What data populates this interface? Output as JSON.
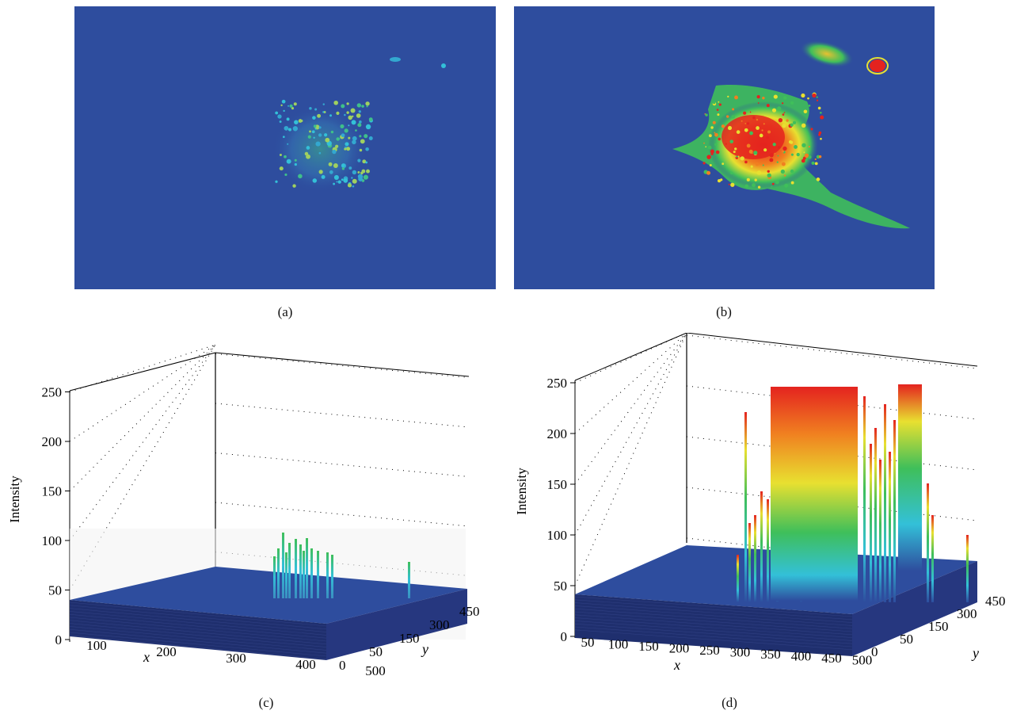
{
  "panels": {
    "a": {
      "label": "(a)"
    },
    "b": {
      "label": "(b)"
    },
    "c": {
      "label": "(c)"
    },
    "d": {
      "label": "(d)"
    }
  },
  "colors": {
    "background_blue": "#2e4d9e",
    "cyan": "#33c0d8",
    "green": "#3fbf5a",
    "yellow": "#e8e030",
    "orange": "#f08020",
    "red": "#e4231f",
    "base_dark": "#1f2f6e"
  },
  "chart_data": [
    {
      "type": "surface",
      "panel": "(c)",
      "zlabel": "Intensity",
      "xlabel": "x",
      "ylabel": "y",
      "z_ticks": [
        "0",
        "50",
        "100",
        "150",
        "200",
        "250"
      ],
      "x_ticks": [
        "100",
        "200",
        "300",
        "400",
        "500"
      ],
      "y_ticks": [
        "0",
        "50",
        "150",
        "300",
        "450"
      ],
      "zlim": [
        0,
        250
      ],
      "baseline_intensity": 40,
      "peak_intensity": 110,
      "grid": true
    },
    {
      "type": "surface",
      "panel": "(d)",
      "zlabel": "Intensity",
      "xlabel": "x",
      "ylabel": "y",
      "z_ticks": [
        "0",
        "50",
        "100",
        "150",
        "200",
        "250"
      ],
      "x_ticks": [
        "50",
        "100",
        "150",
        "200",
        "250",
        "300",
        "350",
        "400",
        "450",
        "500"
      ],
      "y_ticks": [
        "0",
        "50",
        "150",
        "300",
        "450"
      ],
      "zlim": [
        0,
        250
      ],
      "baseline_intensity": 40,
      "peak_intensity": 250,
      "grid": true
    }
  ]
}
